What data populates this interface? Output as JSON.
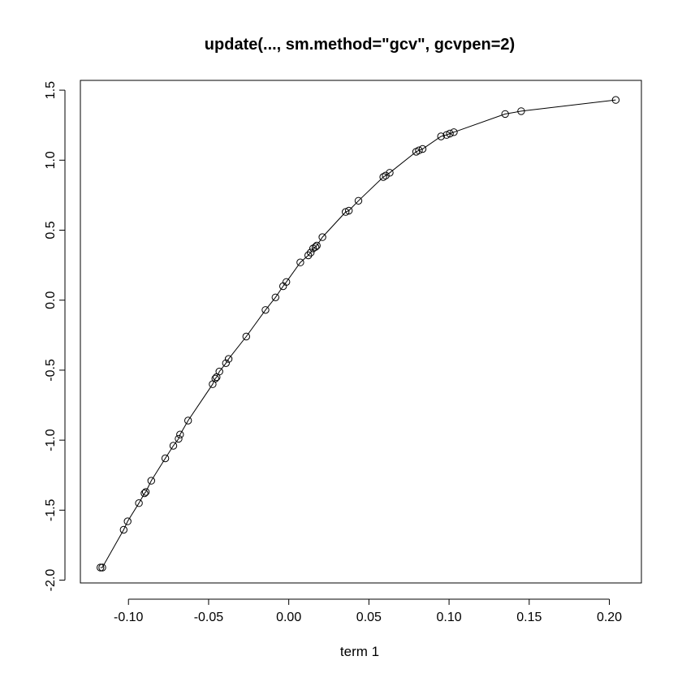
{
  "chart_data": {
    "type": "line",
    "title": "update(..., sm.method=\"gcv\", gcvpen=2)",
    "xlabel": "term 1",
    "ylabel": "",
    "xlim": [
      -0.13,
      0.22
    ],
    "ylim": [
      -2.02,
      1.57
    ],
    "x_ticks": [
      -0.1,
      -0.05,
      0.0,
      0.05,
      0.1,
      0.15,
      0.2
    ],
    "x_tick_labels": [
      "-0.10",
      "-0.05",
      "0.00",
      "0.05",
      "0.10",
      "0.15",
      "0.20"
    ],
    "y_ticks": [
      -2.0,
      -1.5,
      -1.0,
      -0.5,
      0.0,
      0.5,
      1.0,
      1.5
    ],
    "y_tick_labels": [
      "-2.0",
      "-1.5",
      "-1.0",
      "-0.5",
      "0.0",
      "0.5",
      "1.0",
      "1.5"
    ],
    "grid": false,
    "legend": false,
    "markers": "open-circle",
    "series": [
      {
        "color": "#000000",
        "x": [
          -0.1175,
          -0.1163,
          -0.103,
          -0.1005,
          -0.0935,
          -0.09,
          -0.0892,
          -0.0858,
          -0.077,
          -0.072,
          -0.0687,
          -0.0678,
          -0.0628,
          -0.0475,
          -0.0458,
          -0.045,
          -0.0433,
          -0.0392,
          -0.0375,
          -0.0265,
          -0.0145,
          -0.0083,
          -0.0035,
          -0.0015,
          0.0072,
          0.0122,
          0.0137,
          0.0152,
          0.0167,
          0.0175,
          0.021,
          0.0355,
          0.0375,
          0.0435,
          0.059,
          0.0605,
          0.063,
          0.0795,
          0.0812,
          0.0835,
          0.095,
          0.0985,
          0.1005,
          0.103,
          0.135,
          0.145,
          0.204
        ],
        "y": [
          -1.91,
          -1.91,
          -1.64,
          -1.58,
          -1.45,
          -1.38,
          -1.37,
          -1.29,
          -1.13,
          -1.04,
          -0.99,
          -0.96,
          -0.86,
          -0.6,
          -0.56,
          -0.55,
          -0.51,
          -0.45,
          -0.42,
          -0.26,
          -0.07,
          0.02,
          0.1,
          0.13,
          0.27,
          0.32,
          0.34,
          0.37,
          0.38,
          0.39,
          0.45,
          0.63,
          0.64,
          0.71,
          0.88,
          0.89,
          0.91,
          1.06,
          1.07,
          1.08,
          1.17,
          1.18,
          1.19,
          1.2,
          1.33,
          1.35,
          1.43
        ]
      }
    ]
  }
}
